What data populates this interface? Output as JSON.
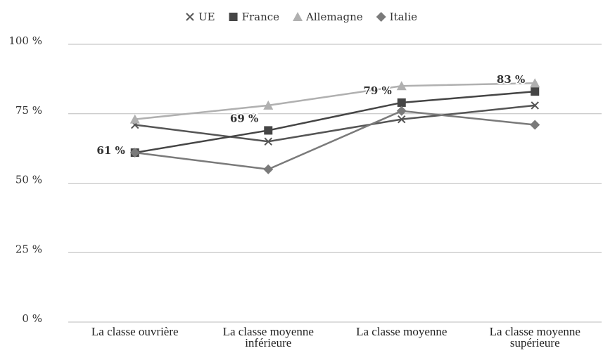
{
  "chart_data": {
    "type": "line",
    "categories": [
      "La classe ouvrière",
      "La classe moyenne inférieure",
      "La classe moyenne",
      "La classe moyenne supérieure"
    ],
    "series": [
      {
        "name": "UE",
        "color": "#555555",
        "marker": "x",
        "values": [
          71,
          65,
          73,
          78
        ]
      },
      {
        "name": "France",
        "color": "#454545",
        "marker": "square",
        "values": [
          61,
          69,
          79,
          83
        ],
        "value_labels": [
          "61 %",
          "69 %",
          "79 %",
          "83 %"
        ]
      },
      {
        "name": "Allemagne",
        "color": "#b0b0b0",
        "marker": "triangle",
        "values": [
          73,
          78,
          85,
          86
        ]
      },
      {
        "name": "Italie",
        "color": "#7a7a7a",
        "marker": "diamond",
        "values": [
          61,
          55,
          76,
          71
        ]
      }
    ],
    "ylim": [
      0,
      100
    ],
    "yticks": [
      {
        "value": 0,
        "label": "0 %"
      },
      {
        "value": 25,
        "label": "25 %"
      },
      {
        "value": 50,
        "label": "50 %"
      },
      {
        "value": 75,
        "label": "75 %"
      },
      {
        "value": 100,
        "label": "100 %"
      }
    ],
    "grid": true,
    "legend": "top"
  }
}
